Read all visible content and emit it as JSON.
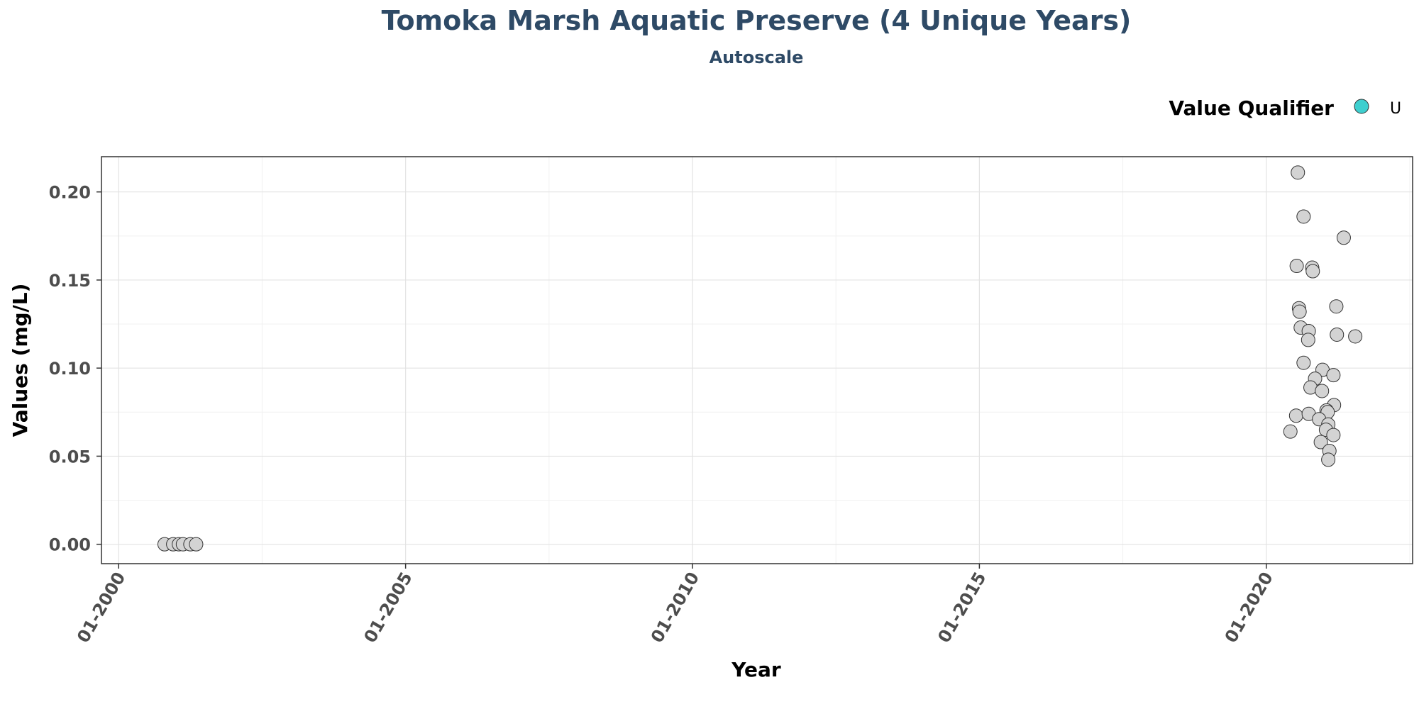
{
  "chart_data": {
    "type": "scatter",
    "title": "Tomoka Marsh Aquatic Preserve (4 Unique Years)",
    "subtitle": "Autoscale",
    "xlabel": "Year",
    "ylabel": "Values (mg/L)",
    "x_tick_labels": [
      "01-2000",
      "01-2005",
      "01-2010",
      "01-2015",
      "01-2020"
    ],
    "x_tick_years": [
      2000,
      2005,
      2010,
      2015,
      2020
    ],
    "y_tick_labels": [
      "0.00",
      "0.05",
      "0.10",
      "0.15",
      "0.20"
    ],
    "y_tick_values": [
      0,
      0.05,
      0.1,
      0.15,
      0.2
    ],
    "xlim": [
      1999.7,
      2022.55
    ],
    "ylim": [
      -0.011,
      0.22
    ],
    "grid": true,
    "legend": {
      "title": "Value Qualifier",
      "placement": "top-right",
      "entries": [
        {
          "label": "U",
          "color": "#3ecfcf"
        }
      ]
    },
    "point_color": "#d3d3d3",
    "point_edge_color": "#333333",
    "series": [
      {
        "points": [
          {
            "x": 2000.8,
            "y": 0.0
          },
          {
            "x": 2000.95,
            "y": 0.0
          },
          {
            "x": 2001.05,
            "y": 0.0
          },
          {
            "x": 2001.12,
            "y": 0.0
          },
          {
            "x": 2001.25,
            "y": 0.0
          },
          {
            "x": 2001.35,
            "y": 0.0
          },
          {
            "x": 2020.55,
            "y": 0.211
          },
          {
            "x": 2020.65,
            "y": 0.186
          },
          {
            "x": 2021.35,
            "y": 0.174
          },
          {
            "x": 2020.53,
            "y": 0.158
          },
          {
            "x": 2020.8,
            "y": 0.157
          },
          {
            "x": 2020.81,
            "y": 0.155
          },
          {
            "x": 2020.57,
            "y": 0.134
          },
          {
            "x": 2020.58,
            "y": 0.132
          },
          {
            "x": 2021.22,
            "y": 0.135
          },
          {
            "x": 2020.6,
            "y": 0.123
          },
          {
            "x": 2020.74,
            "y": 0.121
          },
          {
            "x": 2020.73,
            "y": 0.116
          },
          {
            "x": 2021.23,
            "y": 0.119
          },
          {
            "x": 2021.55,
            "y": 0.118
          },
          {
            "x": 2020.65,
            "y": 0.103
          },
          {
            "x": 2020.98,
            "y": 0.099
          },
          {
            "x": 2021.17,
            "y": 0.096
          },
          {
            "x": 2020.85,
            "y": 0.094
          },
          {
            "x": 2020.77,
            "y": 0.089
          },
          {
            "x": 2020.97,
            "y": 0.087
          },
          {
            "x": 2021.18,
            "y": 0.079
          },
          {
            "x": 2021.05,
            "y": 0.076
          },
          {
            "x": 2021.07,
            "y": 0.075
          },
          {
            "x": 2020.52,
            "y": 0.073
          },
          {
            "x": 2020.74,
            "y": 0.074
          },
          {
            "x": 2020.92,
            "y": 0.071
          },
          {
            "x": 2021.08,
            "y": 0.068
          },
          {
            "x": 2021.04,
            "y": 0.065
          },
          {
            "x": 2020.42,
            "y": 0.064
          },
          {
            "x": 2021.17,
            "y": 0.062
          },
          {
            "x": 2020.95,
            "y": 0.058
          },
          {
            "x": 2021.1,
            "y": 0.053
          },
          {
            "x": 2021.08,
            "y": 0.048
          }
        ]
      }
    ]
  }
}
